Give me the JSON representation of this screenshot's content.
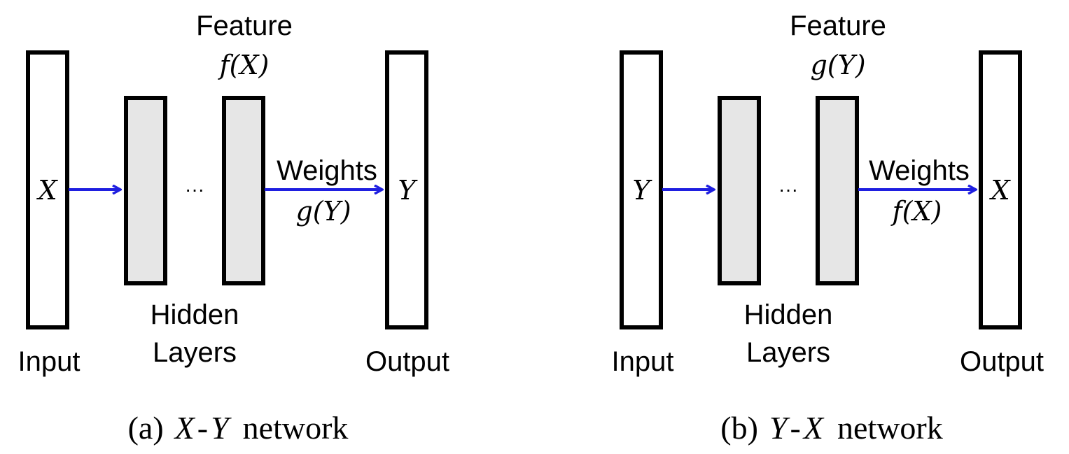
{
  "colors": {
    "arrow": "#1f1fe0",
    "hidden_fill": "#e6e6e6",
    "stroke": "#000000"
  },
  "panels": [
    {
      "feature_label": "Feature",
      "feature_math": "f(X)",
      "input_label": "Input",
      "input_var": "X",
      "hidden_label_1": "Hidden",
      "hidden_label_2": "Layers",
      "dots": "···",
      "weights_label": "Weights",
      "weights_math": "g(Y)",
      "output_var": "Y",
      "output_label": "Output",
      "caption_prefix": "(a)",
      "caption_var1": "X",
      "caption_dash": "-",
      "caption_var2": "Y",
      "caption_suffix": "network"
    },
    {
      "feature_label": "Feature",
      "feature_math": "g(Y)",
      "input_label": "Input",
      "input_var": "Y",
      "hidden_label_1": "Hidden",
      "hidden_label_2": "Layers",
      "dots": "···",
      "weights_label": "Weights",
      "weights_math": "f(X)",
      "output_var": "X",
      "output_label": "Output",
      "caption_prefix": "(b)",
      "caption_var1": "Y",
      "caption_dash": "-",
      "caption_var2": "X",
      "caption_suffix": "network"
    }
  ]
}
